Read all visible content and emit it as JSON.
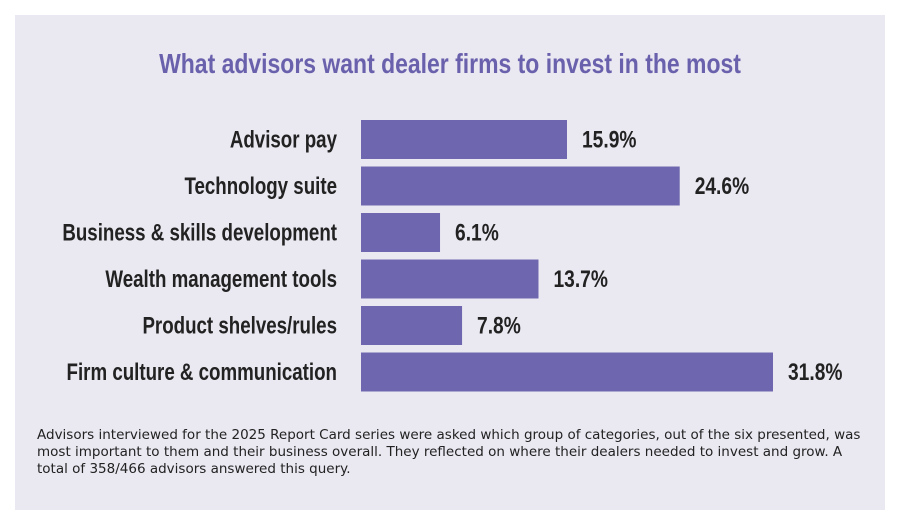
{
  "colors": {
    "panel_background": "#eae8f1",
    "bar": "#6e67b0",
    "title": "#6a61ad",
    "text": "#222222"
  },
  "chart_data": {
    "type": "bar",
    "orientation": "horizontal",
    "title": "What advisors want dealer firms to invest in the most",
    "categories": [
      "Advisor pay",
      "Technology suite",
      "Business & skills development",
      "Wealth management tools",
      "Product shelves/rules",
      "Firm culture & communication"
    ],
    "values": [
      15.9,
      24.6,
      6.1,
      13.7,
      7.8,
      31.8
    ],
    "value_labels": [
      "15.9%",
      "24.6%",
      "6.1%",
      "13.7%",
      "7.8%",
      "31.8%"
    ],
    "unit": "%",
    "xlim": [
      0,
      31.8
    ],
    "grid": false,
    "legend": "none"
  },
  "note": "Advisors interviewed for the 2025 Report Card series were asked which group of categories, out of the six presented, was most important to them and their business overall. They reflected on where their dealers needed to invest and grow. A total of 358/466 advisors answered this query."
}
